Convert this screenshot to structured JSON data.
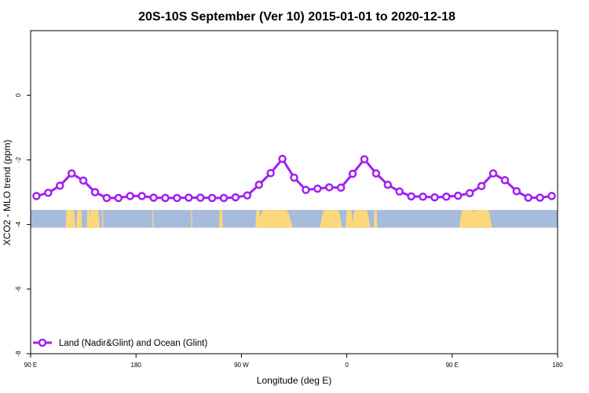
{
  "chart_data": {
    "type": "line",
    "title": "20S-10S September (Ver 10)   2015-01-01 to 2020-12-18",
    "xlabel": "Longitude (deg E)",
    "ylabel": "XCO2 - MLO trend (ppm)",
    "xlim": [
      90,
      540
    ],
    "ylim": [
      -8,
      2
    ],
    "x_ticks": [
      {
        "value": 90,
        "label": "90 E"
      },
      {
        "value": 180,
        "label": "180"
      },
      {
        "value": 270,
        "label": "90 W"
      },
      {
        "value": 360,
        "label": "0"
      },
      {
        "value": 450,
        "label": "90 E"
      },
      {
        "value": 540,
        "label": "180"
      }
    ],
    "y_ticks": [
      {
        "value": 0,
        "label": "0"
      },
      {
        "value": -2,
        "label": "-2"
      },
      {
        "value": -4,
        "label": "-4"
      },
      {
        "value": -6,
        "label": "-6"
      },
      {
        "value": -8,
        "label": "-8"
      }
    ],
    "series": [
      {
        "name": "Land (Nadir&Glint) and Ocean (Glint)",
        "color": "#a020f0",
        "x": [
          95,
          105,
          115,
          125,
          135,
          145,
          155,
          165,
          175,
          185,
          195,
          205,
          215,
          225,
          235,
          245,
          255,
          265,
          275,
          285,
          295,
          305,
          315,
          325,
          335,
          345,
          355,
          365,
          375,
          385,
          395,
          405,
          415,
          425,
          435,
          445,
          455,
          465,
          475,
          485,
          495,
          505,
          515,
          525,
          535
        ],
        "y": [
          -3.12,
          -3.02,
          -2.8,
          -2.42,
          -2.64,
          -3.0,
          -3.18,
          -3.18,
          -3.12,
          -3.12,
          -3.17,
          -3.18,
          -3.18,
          -3.17,
          -3.17,
          -3.18,
          -3.18,
          -3.16,
          -3.1,
          -2.77,
          -2.41,
          -1.97,
          -2.55,
          -2.93,
          -2.89,
          -2.85,
          -2.86,
          -2.43,
          -1.98,
          -2.42,
          -2.77,
          -2.98,
          -3.13,
          -3.14,
          -3.16,
          -3.14,
          -3.11,
          -3.03,
          -2.81,
          -2.42,
          -2.63,
          -2.97,
          -3.17,
          -3.17,
          -3.12
        ]
      }
    ],
    "land_mask": {
      "y_range": [
        -4.1,
        -3.55
      ],
      "ocean_color": "#a7bcdc",
      "land_color": "#fdd87b",
      "land_segments": [
        [
          122,
          128
        ],
        [
          120,
          124
        ],
        [
          129,
          134
        ],
        [
          140,
          149
        ],
        [
          138,
          141
        ],
        [
          151,
          152
        ],
        [
          194,
          195
        ],
        [
          227,
          228
        ],
        [
          251,
          254
        ],
        [
          283,
          314
        ],
        [
          282,
          286
        ],
        [
          337,
          356
        ],
        [
          359,
          365
        ],
        [
          364,
          380
        ],
        [
          383,
          386
        ],
        [
          456,
          470
        ],
        [
          466,
          484
        ],
        [
          463,
          467
        ]
      ]
    },
    "legend": {
      "position": "bottom-left"
    },
    "grid": false
  }
}
